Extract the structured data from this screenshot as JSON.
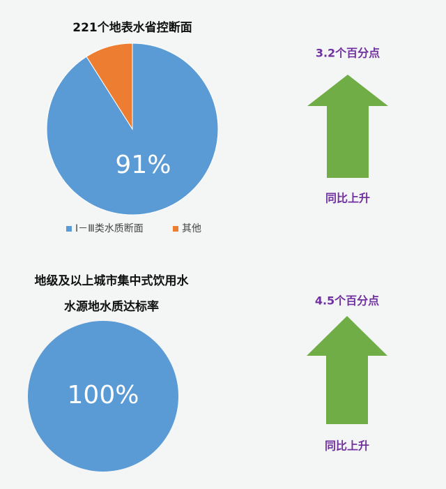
{
  "chart_data": [
    {
      "type": "pie",
      "title": [
        "221个地表水省控断面"
      ],
      "categories": [
        "Ⅰ－Ⅲ类水质断面",
        "其他"
      ],
      "values": [
        91,
        9
      ],
      "value_labels": [
        "91%",
        null
      ],
      "colors": [
        "#5b9bd5",
        "#ed7d31"
      ],
      "legend": true,
      "annotations": [
        "3.2个百分点",
        "同比上升"
      ],
      "arrow_color": "#70ad47"
    },
    {
      "type": "pie",
      "title": [
        "地级及以上城市集中式饮用水",
        "水源地水质达标率"
      ],
      "categories": [
        null
      ],
      "values": [
        100
      ],
      "value_labels": [
        "100%"
      ],
      "colors": [
        "#5b9bd5"
      ],
      "legend": false,
      "annotations": [
        "4.5个百分点",
        "同比上升"
      ],
      "arrow_color": "#70ad47"
    }
  ]
}
